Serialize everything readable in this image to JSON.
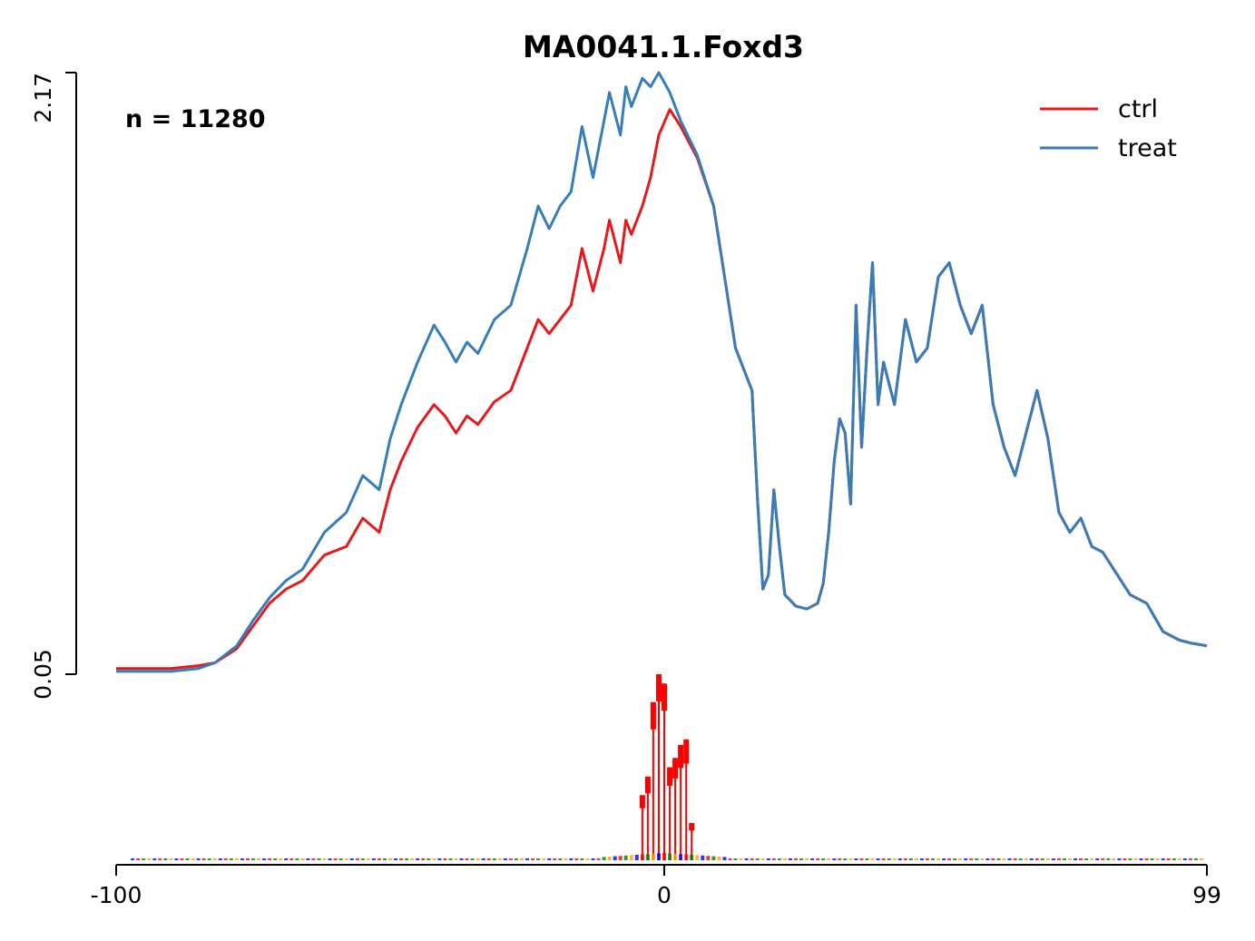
{
  "chart_data": {
    "type": "line",
    "title": "MA0041.1.Foxd3",
    "annotation": "n = 11280",
    "xlabel": "",
    "ylabel": "",
    "xlim": [
      -100,
      99
    ],
    "ylim": [
      0.05,
      2.17
    ],
    "x_ticks": [
      "-100",
      "0",
      "99"
    ],
    "y_ticks": [
      "0.05",
      "2.17"
    ],
    "grid": false,
    "legend_position": "top-right",
    "series": [
      {
        "name": "ctrl",
        "color": "#e41a1c",
        "points": [
          [
            -100,
            0.07
          ],
          [
            -95,
            0.07
          ],
          [
            -90,
            0.07
          ],
          [
            -85,
            0.08
          ],
          [
            -82,
            0.09
          ],
          [
            -78,
            0.14
          ],
          [
            -75,
            0.22
          ],
          [
            -72,
            0.3
          ],
          [
            -69,
            0.35
          ],
          [
            -66,
            0.38
          ],
          [
            -62,
            0.47
          ],
          [
            -58,
            0.5
          ],
          [
            -55,
            0.6
          ],
          [
            -52,
            0.55
          ],
          [
            -50,
            0.7
          ],
          [
            -48,
            0.8
          ],
          [
            -45,
            0.92
          ],
          [
            -42,
            1.0
          ],
          [
            -40,
            0.96
          ],
          [
            -38,
            0.9
          ],
          [
            -36,
            0.96
          ],
          [
            -34,
            0.93
          ],
          [
            -31,
            1.01
          ],
          [
            -28,
            1.05
          ],
          [
            -25,
            1.2
          ],
          [
            -23,
            1.3
          ],
          [
            -21,
            1.25
          ],
          [
            -19,
            1.3
          ],
          [
            -17,
            1.35
          ],
          [
            -15,
            1.55
          ],
          [
            -13,
            1.4
          ],
          [
            -11,
            1.55
          ],
          [
            -10,
            1.65
          ],
          [
            -8,
            1.5
          ],
          [
            -7,
            1.65
          ],
          [
            -6,
            1.6
          ],
          [
            -4,
            1.7
          ],
          [
            -2.5,
            1.8
          ],
          [
            -1,
            1.95
          ],
          [
            1,
            2.04
          ],
          [
            3,
            1.98
          ],
          [
            6,
            1.87
          ],
          [
            9,
            1.7
          ],
          [
            11,
            1.45
          ],
          [
            13,
            1.2
          ],
          [
            16,
            1.05
          ],
          [
            17,
            0.67
          ],
          [
            18,
            0.35
          ],
          [
            19,
            0.4
          ],
          [
            20,
            0.7
          ],
          [
            21,
            0.5
          ],
          [
            22,
            0.33
          ],
          [
            24,
            0.29
          ],
          [
            26,
            0.28
          ],
          [
            28,
            0.3
          ],
          [
            29,
            0.37
          ],
          [
            30,
            0.55
          ],
          [
            31,
            0.8
          ],
          [
            32,
            0.95
          ],
          [
            33,
            0.9
          ],
          [
            34,
            0.65
          ],
          [
            35,
            1.35
          ],
          [
            36,
            0.85
          ],
          [
            37,
            1.2
          ],
          [
            38,
            1.5
          ],
          [
            39,
            1.0
          ],
          [
            40,
            1.15
          ],
          [
            42,
            1.0
          ],
          [
            44,
            1.3
          ],
          [
            46,
            1.15
          ],
          [
            48,
            1.2
          ],
          [
            50,
            1.45
          ],
          [
            52,
            1.5
          ],
          [
            54,
            1.35
          ],
          [
            56,
            1.25
          ],
          [
            58,
            1.35
          ],
          [
            60,
            1.0
          ],
          [
            62,
            0.85
          ],
          [
            64,
            0.75
          ],
          [
            66,
            0.9
          ],
          [
            68,
            1.05
          ],
          [
            70,
            0.88
          ],
          [
            72,
            0.62
          ],
          [
            74,
            0.55
          ],
          [
            76,
            0.6
          ],
          [
            78,
            0.5
          ],
          [
            80,
            0.48
          ],
          [
            82,
            0.42
          ],
          [
            85,
            0.33
          ],
          [
            88,
            0.3
          ],
          [
            91,
            0.2
          ],
          [
            94,
            0.17
          ],
          [
            96,
            0.16
          ],
          [
            99,
            0.15
          ]
        ]
      },
      {
        "name": "treat",
        "color": "#377eb8",
        "points": [
          [
            -100,
            0.06
          ],
          [
            -95,
            0.06
          ],
          [
            -90,
            0.06
          ],
          [
            -85,
            0.07
          ],
          [
            -82,
            0.09
          ],
          [
            -78,
            0.15
          ],
          [
            -75,
            0.24
          ],
          [
            -72,
            0.32
          ],
          [
            -69,
            0.38
          ],
          [
            -66,
            0.42
          ],
          [
            -62,
            0.55
          ],
          [
            -58,
            0.62
          ],
          [
            -55,
            0.75
          ],
          [
            -52,
            0.7
          ],
          [
            -50,
            0.88
          ],
          [
            -48,
            1.0
          ],
          [
            -45,
            1.15
          ],
          [
            -42,
            1.28
          ],
          [
            -40,
            1.22
          ],
          [
            -38,
            1.15
          ],
          [
            -36,
            1.22
          ],
          [
            -34,
            1.18
          ],
          [
            -31,
            1.3
          ],
          [
            -28,
            1.35
          ],
          [
            -25,
            1.55
          ],
          [
            -23,
            1.7
          ],
          [
            -21,
            1.62
          ],
          [
            -19,
            1.7
          ],
          [
            -17,
            1.75
          ],
          [
            -15,
            1.98
          ],
          [
            -13,
            1.8
          ],
          [
            -11,
            2.0
          ],
          [
            -10,
            2.1
          ],
          [
            -8,
            1.95
          ],
          [
            -7,
            2.12
          ],
          [
            -6,
            2.05
          ],
          [
            -4,
            2.15
          ],
          [
            -2.5,
            2.12
          ],
          [
            -1,
            2.17
          ],
          [
            1,
            2.1
          ],
          [
            3,
            2.0
          ],
          [
            6,
            1.88
          ],
          [
            9,
            1.7
          ],
          [
            11,
            1.45
          ],
          [
            13,
            1.2
          ],
          [
            16,
            1.05
          ],
          [
            17,
            0.67
          ],
          [
            18,
            0.35
          ],
          [
            19,
            0.4
          ],
          [
            20,
            0.7
          ],
          [
            21,
            0.5
          ],
          [
            22,
            0.33
          ],
          [
            24,
            0.29
          ],
          [
            26,
            0.28
          ],
          [
            28,
            0.3
          ],
          [
            29,
            0.37
          ],
          [
            30,
            0.55
          ],
          [
            31,
            0.8
          ],
          [
            32,
            0.95
          ],
          [
            33,
            0.9
          ],
          [
            34,
            0.65
          ],
          [
            35,
            1.35
          ],
          [
            36,
            0.85
          ],
          [
            37,
            1.2
          ],
          [
            38,
            1.5
          ],
          [
            39,
            1.0
          ],
          [
            40,
            1.15
          ],
          [
            42,
            1.0
          ],
          [
            44,
            1.3
          ],
          [
            46,
            1.15
          ],
          [
            48,
            1.2
          ],
          [
            50,
            1.45
          ],
          [
            52,
            1.5
          ],
          [
            54,
            1.35
          ],
          [
            56,
            1.25
          ],
          [
            58,
            1.35
          ],
          [
            60,
            1.0
          ],
          [
            62,
            0.85
          ],
          [
            64,
            0.75
          ],
          [
            66,
            0.9
          ],
          [
            68,
            1.05
          ],
          [
            70,
            0.88
          ],
          [
            72,
            0.62
          ],
          [
            74,
            0.55
          ],
          [
            76,
            0.6
          ],
          [
            78,
            0.5
          ],
          [
            80,
            0.48
          ],
          [
            82,
            0.42
          ],
          [
            85,
            0.33
          ],
          [
            88,
            0.3
          ],
          [
            91,
            0.2
          ],
          [
            94,
            0.17
          ],
          [
            96,
            0.16
          ],
          [
            99,
            0.15
          ]
        ]
      }
    ],
    "motif_logo": {
      "description_color_red": "#ff0000",
      "description_color_green": "#008000",
      "description_color_orange": "#ffa500",
      "description_color_blue": "#0000ff",
      "positions": [
        -4,
        -3,
        -2,
        -1,
        0,
        1,
        2,
        3,
        4,
        5
      ],
      "heights": [
        0.35,
        0.45,
        0.85,
        1.0,
        0.95,
        0.5,
        0.55,
        0.62,
        0.65,
        0.2
      ]
    }
  }
}
